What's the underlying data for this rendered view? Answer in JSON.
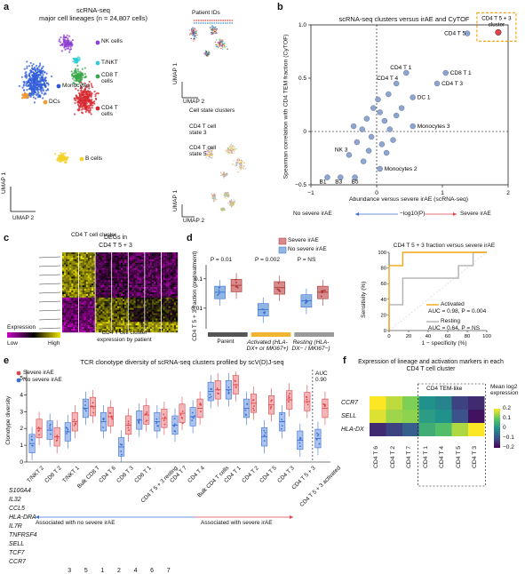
{
  "panel_a": {
    "label": "a",
    "title": "scRNA-seq",
    "subtitle": "major cell lineages (n = 24,807 cells)",
    "clusters": [
      {
        "name": "Monocytes",
        "color": "#2e5bd8"
      },
      {
        "name": "DCs",
        "color": "#f29a33"
      },
      {
        "name": "NK cells",
        "color": "#8e3fd0"
      },
      {
        "name": "T/NKT",
        "color": "#33c9d6"
      },
      {
        "name": "CD8 T cells",
        "color": "#3aa64a"
      },
      {
        "name": "CD4 T cells",
        "color": "#d5262e"
      },
      {
        "name": "B cells",
        "color": "#f2d22a"
      }
    ],
    "umap1": "UMAP 1",
    "umap2": "UMAP 2",
    "patient_ids_title": "Patient IDs",
    "cell_state_title": "Cell state clusters",
    "state3": "CD4 T cell state 3",
    "state5": "CD4 T cell state 5"
  },
  "panel_b": {
    "label": "b",
    "chart_data": {
      "type": "scatter",
      "title": "scRNA-seq clusters versus irAE and CyTOF",
      "xlabel": "Abundance versus severe irAE (scRNA-seq)",
      "ylabel": "Spearman correlation with CD4 TEM fraction (CyTOF)",
      "xlim": [
        -1,
        2
      ],
      "ylim": [
        -0.5,
        1.0
      ],
      "xticks": [
        "−1",
        "0",
        "1",
        "2"
      ],
      "yticks": [
        "−0.5",
        "0",
        "0.5",
        "1.0"
      ],
      "points": [
        {
          "x": 1.85,
          "y": 0.93,
          "label": "CD4 T 5 + 3 cluster",
          "highlight": true
        },
        {
          "x": 1.38,
          "y": 0.92,
          "label": "CD4 T 5"
        },
        {
          "x": 1.05,
          "y": 0.55,
          "label": "CD8 T 1"
        },
        {
          "x": 0.45,
          "y": 0.55,
          "label": "CD4 T 1"
        },
        {
          "x": 0.92,
          "y": 0.45,
          "label": "CD4 T 3"
        },
        {
          "x": 0.3,
          "y": 0.45,
          "label": "CD4 T 4"
        },
        {
          "x": 0.55,
          "y": 0.32,
          "label": "DC 1"
        },
        {
          "x": 0.55,
          "y": 0.05,
          "label": "Monocytes 3"
        },
        {
          "x": 0.05,
          "y": -0.35,
          "label": "Monocytes 2"
        },
        {
          "x": -0.42,
          "y": -0.22,
          "label": "NK 3"
        },
        {
          "x": -0.75,
          "y": -0.43,
          "label": "B1"
        },
        {
          "x": -0.55,
          "y": -0.43,
          "label": "B3"
        },
        {
          "x": -0.33,
          "y": -0.43,
          "label": "B5"
        },
        {
          "x": -0.05,
          "y": 0.22,
          "label": ""
        },
        {
          "x": 0.05,
          "y": 0.18,
          "label": ""
        },
        {
          "x": -0.15,
          "y": 0.12,
          "label": ""
        },
        {
          "x": 0.12,
          "y": 0.1,
          "label": ""
        },
        {
          "x": -0.22,
          "y": 0.02,
          "label": ""
        },
        {
          "x": 0.2,
          "y": 0.02,
          "label": ""
        },
        {
          "x": -0.08,
          "y": -0.05,
          "label": ""
        },
        {
          "x": 0.25,
          "y": -0.08,
          "label": ""
        },
        {
          "x": -0.3,
          "y": -0.1,
          "label": ""
        },
        {
          "x": 0.08,
          "y": -0.12,
          "label": ""
        },
        {
          "x": -0.12,
          "y": -0.18,
          "label": ""
        },
        {
          "x": 0.15,
          "y": -0.2,
          "label": ""
        },
        {
          "x": 0.3,
          "y": 0.15,
          "label": ""
        },
        {
          "x": 0.38,
          "y": 0.22,
          "label": ""
        },
        {
          "x": -0.35,
          "y": 0.05,
          "label": ""
        },
        {
          "x": 0.02,
          "y": 0.3,
          "label": ""
        },
        {
          "x": 0.18,
          "y": 0.35,
          "label": ""
        },
        {
          "x": -0.2,
          "y": -0.28,
          "label": ""
        }
      ],
      "arrow_left": "No severe irAE",
      "arrow_mid": "−log10(P)",
      "arrow_right": "Severe irAE"
    }
  },
  "panel_c": {
    "label": "c",
    "title": "DEGs in",
    "subtitle": "CD4 T 5 + 3",
    "genes": [
      "S100A4",
      "IL32",
      "CCL5",
      "HLA-DRA",
      "IL7R",
      "TNFRSF4",
      "SELL",
      "TCF7",
      "CCR7"
    ],
    "clusters": [
      "3",
      "5",
      "1",
      "2",
      "4",
      "6",
      "7"
    ],
    "xlabel": "CD4 T cell cluster",
    "xlabel2": "expression by patient",
    "legend_title": "Expression",
    "legend_low": "Low",
    "legend_high": "High"
  },
  "panel_d": {
    "label": "d",
    "chart_data": [
      {
        "type": "box",
        "ylabel": "CD4 T 5 + 3 fraction (pretreatment)",
        "yticks": [
          "0.01",
          "0.1"
        ],
        "legend": [
          {
            "name": "Severe irAE",
            "color": "#d98b8b"
          },
          {
            "name": "No severe irAE",
            "color": "#8fb6e3"
          }
        ],
        "groups": [
          {
            "name": "Parent",
            "pvalue": "P = 0.01",
            "severe_median": 0.06,
            "none_median": 0.035
          },
          {
            "name": "Activated (HLA-DX+ or MKI67+)",
            "pvalue": "P = 0.002",
            "severe_median": 0.05,
            "none_median": 0.009
          },
          {
            "name": "Resting (HLA-DX− / MKI67−)",
            "pvalue": "P = NS",
            "severe_median": 0.035,
            "none_median": 0.018
          }
        ],
        "bar_colors": [
          "#555555",
          "#f2b531",
          "#9a9a9a"
        ]
      },
      {
        "type": "line",
        "title": "CD4 T 5 + 3 fraction versus severe irAE",
        "xlabel": "1 − specificity (%)",
        "ylabel": "Sensitivity (%)",
        "xticks": [
          "0",
          "20",
          "40",
          "60",
          "80",
          "100"
        ],
        "yticks": [
          "0",
          "20",
          "40",
          "60",
          "80",
          "100"
        ],
        "series": [
          {
            "name": "Activated",
            "auc": "AUC = 0.98, P = 0.004",
            "color": "#f2a516",
            "x": [
              0,
              0,
              14,
              14,
              100
            ],
            "y": [
              0,
              83,
              83,
              100,
              100
            ]
          },
          {
            "name": "Resting",
            "auc": "AUC = 0.64, P = NS",
            "color": "#b0b0b0",
            "x": [
              0,
              0,
              14,
              14,
              71,
              71,
              86,
              86,
              100
            ],
            "y": [
              0,
              33,
              33,
              67,
              67,
              83,
              83,
              100,
              100
            ]
          }
        ]
      }
    ]
  },
  "panel_e": {
    "label": "e",
    "chart_data": {
      "type": "box",
      "title": "TCR clonotype diversity of scRNA-seq clusters profiled by scV(D)J-seq",
      "ylabel": "Clonotype diversity",
      "yticks": [
        "0",
        "1",
        "2",
        "3",
        "4",
        "5"
      ],
      "ylim": [
        0,
        5.5
      ],
      "legend": [
        {
          "name": "Severe irAE",
          "color": "#e0454b"
        },
        {
          "name": "No severe irAE",
          "color": "#3b6fd4"
        }
      ],
      "categories": [
        "T/NKT 2",
        "CD8 T 2",
        "T/NKT 1",
        "Bulk CD8 T",
        "CD4 T 6",
        "CD8 T 3",
        "CD8 T 1",
        "CD4 T 5 + 3 resting",
        "CD4 T 7",
        "CD4 T 4",
        "Bulk CD4 T cells",
        "CD4 T 1",
        "CD4 T 2",
        "CD4 T 5",
        "CD4 T 3",
        "CD4 T 5 + 3",
        "CD4 T 5 + 3 activated"
      ],
      "severe_median": [
        2.0,
        1.5,
        2.4,
        3.3,
        2.7,
        2.2,
        2.8,
        2.6,
        2.9,
        3.2,
        4.3,
        4.6,
        3.5,
        3.4,
        3.7,
        3.6,
        3.2
      ],
      "none_median": [
        1.1,
        1.9,
        1.8,
        3.2,
        2.4,
        0.9,
        2.5,
        2.4,
        2.2,
        2.7,
        4.2,
        4.3,
        3.2,
        1.5,
        2.4,
        1.3,
        1.4
      ],
      "auc_label": "AUC",
      "auc_value": "0.90",
      "arrow_left": "Associated with no severe irAE",
      "arrow_right": "Associated with severe irAE"
    }
  },
  "panel_f": {
    "label": "f",
    "chart_data": {
      "type": "heatmap",
      "title": "Expression of lineage and activation markers in each CD4 T cell cluster",
      "rows": [
        "CCR7",
        "SELL",
        "HLA-DX"
      ],
      "columns": [
        "CD4 T 6",
        "CD4 T 2",
        "CD4 T 7",
        "CD4 T 1",
        "CD4 T 4",
        "CD4 T 5",
        "CD4 T 3"
      ],
      "values": [
        [
          0.2,
          0.16,
          0.12,
          0.0,
          -0.02,
          -0.12,
          -0.15
        ],
        [
          0.18,
          0.14,
          0.13,
          0.02,
          0.0,
          -0.1,
          -0.18
        ],
        [
          -0.15,
          -0.12,
          -0.08,
          0.05,
          0.08,
          0.15,
          0.22
        ]
      ],
      "group_label": "CD4 TEM-like",
      "legend_title": "Mean log2 expression",
      "legend_ticks": [
        "0.2",
        "0.1",
        "0",
        "−0.1",
        "−0.2"
      ]
    }
  }
}
